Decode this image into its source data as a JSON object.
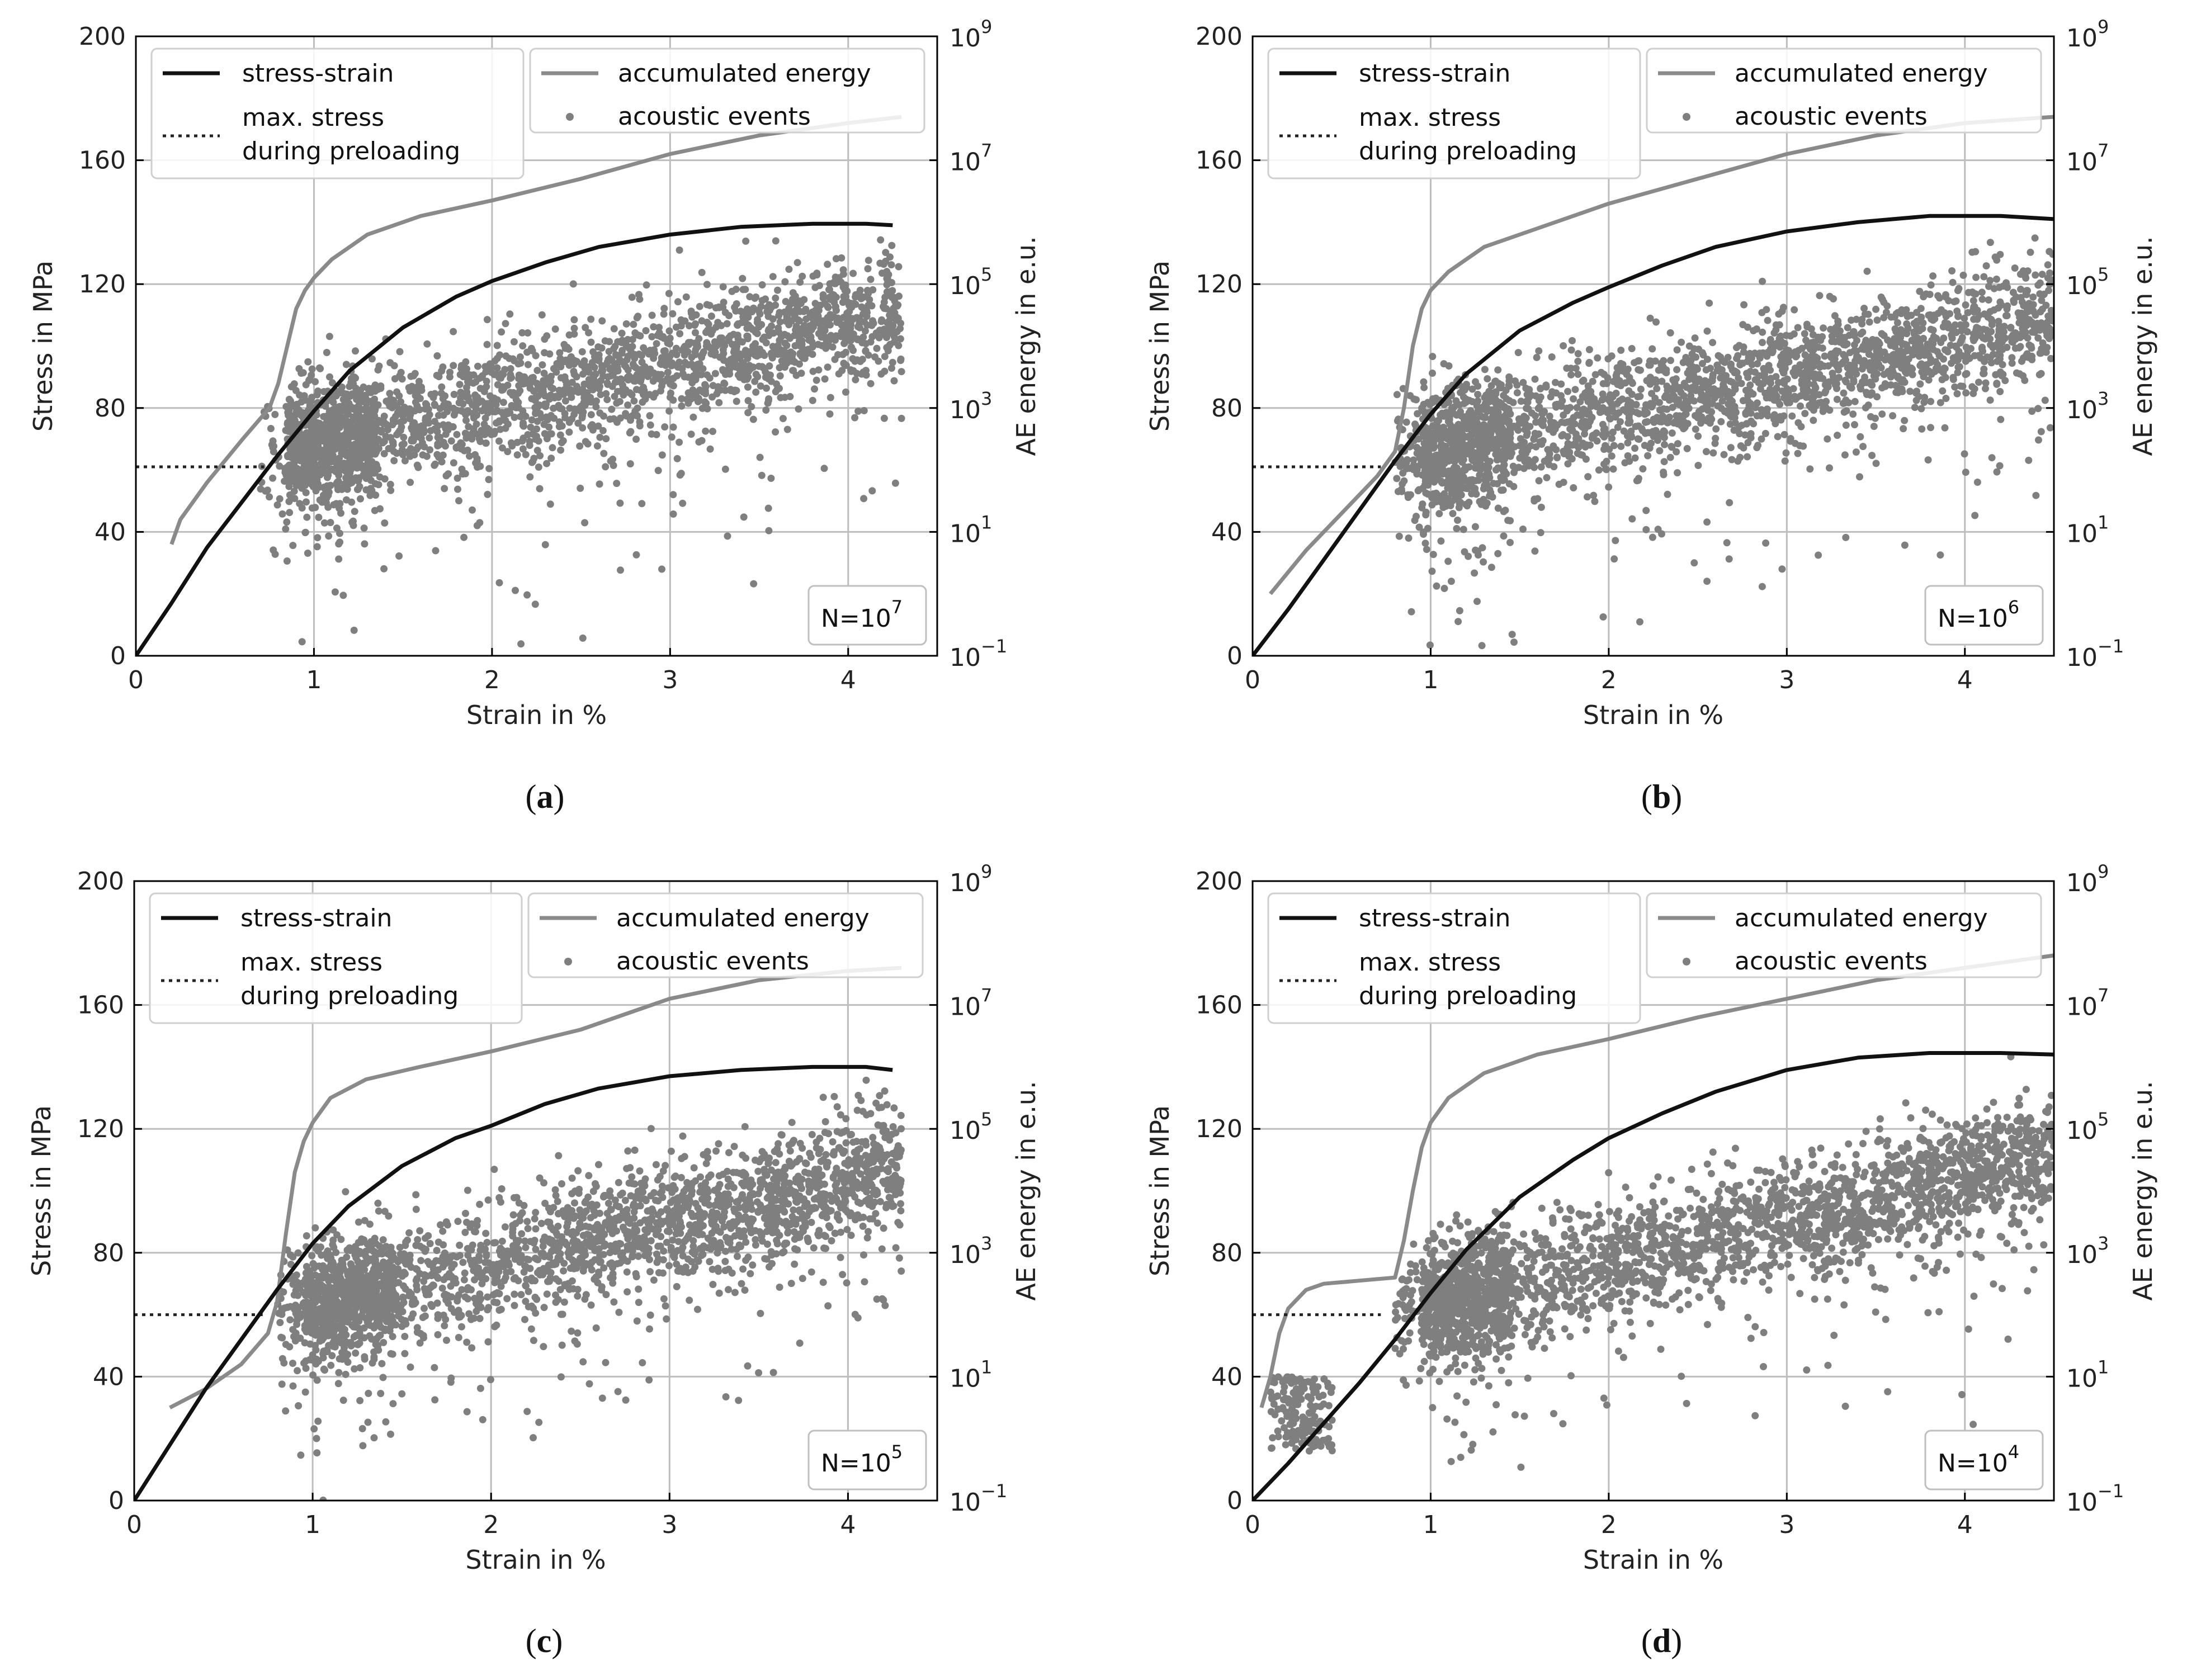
{
  "colors": {
    "stress": "#111111",
    "energy": "#8a8a8a",
    "events": "#7f7f7f",
    "grid": "#bdbdbd",
    "axis": "#000000",
    "preload": "#222222"
  },
  "chart_data": [
    {
      "id": "a",
      "type": "line",
      "caption_letter": "a",
      "title": "",
      "xlabel": "Strain in %",
      "ylabel": "Stress in MPa",
      "y2label": "AE energy in e.u.",
      "xlim": [
        0,
        4.5
      ],
      "ylim": [
        0,
        200
      ],
      "y2lim_log10": [
        -1,
        9
      ],
      "xticks": [
        "0",
        "1",
        "2",
        "3",
        "4"
      ],
      "yticks": [
        "0",
        "40",
        "80",
        "120",
        "160",
        "200"
      ],
      "y2ticks": [
        {
          "base": "10",
          "exp": "−1"
        },
        {
          "base": "10",
          "exp": "1"
        },
        {
          "base": "10",
          "exp": "3"
        },
        {
          "base": "10",
          "exp": "5"
        },
        {
          "base": "10",
          "exp": "7"
        },
        {
          "base": "10",
          "exp": "9"
        }
      ],
      "annotation": {
        "base": "N=10",
        "exp": "7"
      },
      "preload_stress": 61,
      "legend_left": {
        "stress_strain": "stress-strain",
        "max_stress_line1": "max. stress",
        "max_stress_line2": "during preloading"
      },
      "legend_right": {
        "accumulated_energy": "accumulated energy",
        "acoustic_events": "acoustic events"
      },
      "series": [
        {
          "name": "stress-strain",
          "x": [
            0,
            0.2,
            0.4,
            0.6,
            0.8,
            1.0,
            1.2,
            1.5,
            1.8,
            2.0,
            2.3,
            2.6,
            3.0,
            3.4,
            3.8,
            4.1,
            4.25
          ],
          "y": [
            0,
            17,
            35,
            50,
            65,
            79,
            92,
            106,
            116,
            121,
            127,
            132,
            136,
            138.5,
            139.5,
            139.5,
            139
          ]
        },
        {
          "name": "accumulated energy",
          "x": [
            0.2,
            0.25,
            0.4,
            0.6,
            0.75,
            0.8,
            0.85,
            0.9,
            0.95,
            1.0,
            1.1,
            1.3,
            1.6,
            2.0,
            2.5,
            3.0,
            3.5,
            4.0,
            4.3
          ],
          "y_log10": [
            0.8,
            1.2,
            1.8,
            2.5,
            3.0,
            3.4,
            4.0,
            4.6,
            4.9,
            5.1,
            5.4,
            5.8,
            6.1,
            6.35,
            6.7,
            7.1,
            7.4,
            7.6,
            7.7
          ]
        },
        {
          "name": "acoustic events",
          "x_range": [
            0.7,
            4.3
          ],
          "y_log10_centre": [
            2.2,
            4.6
          ],
          "y_log10_spread": 0.9
        }
      ]
    },
    {
      "id": "b",
      "type": "line",
      "caption_letter": "b",
      "title": "",
      "xlabel": "Strain in %",
      "ylabel": "Stress in MPa",
      "y2label": "AE energy in e.u.",
      "xlim": [
        0,
        4.5
      ],
      "ylim": [
        0,
        200
      ],
      "y2lim_log10": [
        -1,
        9
      ],
      "xticks": [
        "0",
        "1",
        "2",
        "3",
        "4"
      ],
      "yticks": [
        "0",
        "40",
        "80",
        "120",
        "160",
        "200"
      ],
      "y2ticks": [
        {
          "base": "10",
          "exp": "−1"
        },
        {
          "base": "10",
          "exp": "1"
        },
        {
          "base": "10",
          "exp": "3"
        },
        {
          "base": "10",
          "exp": "5"
        },
        {
          "base": "10",
          "exp": "7"
        },
        {
          "base": "10",
          "exp": "9"
        }
      ],
      "annotation": {
        "base": "N=10",
        "exp": "6"
      },
      "preload_stress": 61,
      "legend_left": {
        "stress_strain": "stress-strain",
        "max_stress_line1": "max. stress",
        "max_stress_line2": "during preloading"
      },
      "legend_right": {
        "accumulated_energy": "accumulated energy",
        "acoustic_events": "acoustic events"
      },
      "series": [
        {
          "name": "stress-strain",
          "x": [
            0,
            0.2,
            0.4,
            0.6,
            0.8,
            1.0,
            1.2,
            1.5,
            1.8,
            2.0,
            2.3,
            2.6,
            3.0,
            3.4,
            3.8,
            4.2,
            4.5
          ],
          "y": [
            0,
            15,
            31,
            47,
            63,
            78,
            91,
            105,
            114,
            119,
            126,
            132,
            137,
            140,
            142,
            142,
            141
          ]
        },
        {
          "name": "accumulated energy",
          "x": [
            0.1,
            0.3,
            0.5,
            0.7,
            0.8,
            0.85,
            0.9,
            0.95,
            1.0,
            1.1,
            1.3,
            1.6,
            2.0,
            2.5,
            3.0,
            3.5,
            4.0,
            4.5
          ],
          "y_log10": [
            0.0,
            0.7,
            1.3,
            1.9,
            2.3,
            3.0,
            4.0,
            4.6,
            4.9,
            5.2,
            5.6,
            5.9,
            6.3,
            6.7,
            7.1,
            7.4,
            7.6,
            7.7
          ]
        },
        {
          "name": "acoustic events",
          "x_range": [
            0.8,
            4.5
          ],
          "y_log10_centre": [
            2.2,
            4.5
          ],
          "y_log10_spread": 0.9
        }
      ]
    },
    {
      "id": "c",
      "type": "line",
      "caption_letter": "c",
      "title": "",
      "xlabel": "Strain in %",
      "ylabel": "Stress in MPa",
      "y2label": "AE energy in e.u.",
      "xlim": [
        0,
        4.5
      ],
      "ylim": [
        0,
        200
      ],
      "y2lim_log10": [
        -1,
        9
      ],
      "xticks": [
        "0",
        "1",
        "2",
        "3",
        "4"
      ],
      "yticks": [
        "0",
        "40",
        "80",
        "120",
        "160",
        "200"
      ],
      "y2ticks": [
        {
          "base": "10",
          "exp": "−1"
        },
        {
          "base": "10",
          "exp": "1"
        },
        {
          "base": "10",
          "exp": "3"
        },
        {
          "base": "10",
          "exp": "5"
        },
        {
          "base": "10",
          "exp": "7"
        },
        {
          "base": "10",
          "exp": "9"
        }
      ],
      "annotation": {
        "base": "N=10",
        "exp": "5"
      },
      "preload_stress": 60,
      "legend_left": {
        "stress_strain": "stress-strain",
        "max_stress_line1": "max. stress",
        "max_stress_line2": "during preloading"
      },
      "legend_right": {
        "accumulated_energy": "accumulated energy",
        "acoustic_events": "acoustic events"
      },
      "series": [
        {
          "name": "stress-strain",
          "x": [
            0,
            0.2,
            0.4,
            0.6,
            0.8,
            1.0,
            1.2,
            1.5,
            1.8,
            2.0,
            2.3,
            2.6,
            3.0,
            3.4,
            3.8,
            4.1,
            4.25
          ],
          "y": [
            0,
            18,
            36,
            52,
            68,
            83,
            95,
            108,
            117,
            121,
            128,
            133,
            137,
            139,
            140,
            140,
            139
          ]
        },
        {
          "name": "accumulated energy",
          "x": [
            0.2,
            0.4,
            0.6,
            0.75,
            0.8,
            0.85,
            0.9,
            0.95,
            1.0,
            1.1,
            1.3,
            1.6,
            2.0,
            2.5,
            3.0,
            3.5,
            4.0,
            4.3
          ],
          "y_log10": [
            0.5,
            0.8,
            1.2,
            1.7,
            2.2,
            3.3,
            4.3,
            4.8,
            5.1,
            5.5,
            5.8,
            6.0,
            6.25,
            6.6,
            7.1,
            7.4,
            7.55,
            7.6
          ]
        },
        {
          "name": "acoustic events",
          "x_range": [
            0.8,
            4.3
          ],
          "y_log10_centre": [
            2.0,
            4.4
          ],
          "y_log10_spread": 0.9
        }
      ]
    },
    {
      "id": "d",
      "type": "line",
      "caption_letter": "d",
      "title": "",
      "xlabel": "Strain in %",
      "ylabel": "Stress in MPa",
      "y2label": "AE energy in e.u.",
      "xlim": [
        0,
        4.5
      ],
      "ylim": [
        0,
        200
      ],
      "y2lim_log10": [
        -1,
        9
      ],
      "xticks": [
        "0",
        "1",
        "2",
        "3",
        "4"
      ],
      "yticks": [
        "0",
        "40",
        "80",
        "120",
        "160",
        "200"
      ],
      "y2ticks": [
        {
          "base": "10",
          "exp": "−1"
        },
        {
          "base": "10",
          "exp": "1"
        },
        {
          "base": "10",
          "exp": "3"
        },
        {
          "base": "10",
          "exp": "5"
        },
        {
          "base": "10",
          "exp": "7"
        },
        {
          "base": "10",
          "exp": "9"
        }
      ],
      "annotation": {
        "base": "N=10",
        "exp": "4"
      },
      "preload_stress": 60,
      "legend_left": {
        "stress_strain": "stress-strain",
        "max_stress_line1": "max. stress",
        "max_stress_line2": "during preloading"
      },
      "legend_right": {
        "accumulated_energy": "accumulated energy",
        "acoustic_events": "acoustic events"
      },
      "series": [
        {
          "name": "stress-strain",
          "x": [
            0,
            0.2,
            0.4,
            0.6,
            0.8,
            1.0,
            1.2,
            1.5,
            1.8,
            2.0,
            2.3,
            2.6,
            3.0,
            3.4,
            3.8,
            4.2,
            4.5
          ],
          "y": [
            0,
            12,
            25,
            38,
            52,
            67,
            81,
            98,
            110,
            117,
            125,
            132,
            139,
            143,
            144.5,
            144.5,
            144
          ]
        },
        {
          "name": "accumulated energy",
          "x": [
            0.05,
            0.1,
            0.15,
            0.2,
            0.3,
            0.4,
            0.6,
            0.8,
            0.85,
            0.9,
            0.95,
            1.0,
            1.1,
            1.3,
            1.6,
            2.0,
            2.5,
            3.0,
            3.5,
            4.0,
            4.5
          ],
          "y_log10": [
            0.5,
            1.0,
            1.7,
            2.1,
            2.4,
            2.5,
            2.55,
            2.6,
            3.2,
            4.0,
            4.7,
            5.1,
            5.5,
            5.9,
            6.2,
            6.45,
            6.8,
            7.1,
            7.4,
            7.6,
            7.8
          ]
        },
        {
          "name": "acoustic events",
          "x_range": [
            0.8,
            4.5
          ],
          "y_log10_centre": [
            2.0,
            4.6
          ],
          "y_log10_spread": 0.9,
          "early_cluster": {
            "x_range": [
              0.1,
              0.45
            ],
            "y_log10_range": [
              -0.2,
              1.0
            ]
          }
        }
      ]
    }
  ]
}
